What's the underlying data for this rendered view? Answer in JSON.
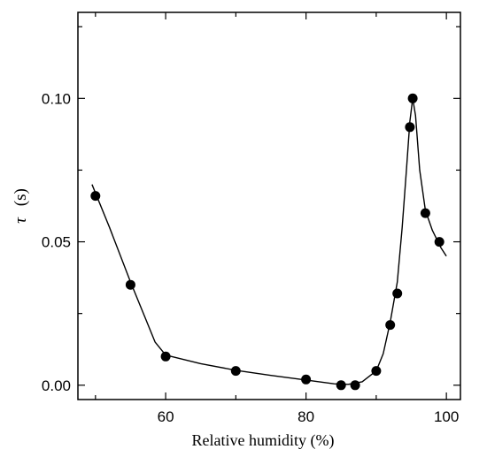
{
  "chart_data": {
    "type": "scatter",
    "title": "",
    "xlabel": "Relative humidity (%)",
    "ylabel_symbol": "τ",
    "ylabel_unit": "(s)",
    "xlim": [
      47.5,
      102
    ],
    "ylim": [
      -0.005,
      0.13
    ],
    "xticks": [
      60,
      80,
      100
    ],
    "yticks": [
      0.0,
      0.05,
      0.1
    ],
    "ytick_labels": [
      "0.00",
      "0.05",
      "0.10"
    ],
    "grid": false,
    "series": [
      {
        "points": [
          {
            "x": 50,
            "y": 0.066
          },
          {
            "x": 55,
            "y": 0.035
          },
          {
            "x": 60,
            "y": 0.01
          },
          {
            "x": 70,
            "y": 0.005
          },
          {
            "x": 80,
            "y": 0.002
          },
          {
            "x": 85,
            "y": 0.0
          },
          {
            "x": 87,
            "y": 0.0
          },
          {
            "x": 90,
            "y": 0.005
          },
          {
            "x": 92,
            "y": 0.021
          },
          {
            "x": 93,
            "y": 0.032
          },
          {
            "x": 94.8,
            "y": 0.09
          },
          {
            "x": 95.2,
            "y": 0.1
          },
          {
            "x": 97,
            "y": 0.06
          },
          {
            "x": 99,
            "y": 0.05
          }
        ],
        "color": "#000000"
      }
    ],
    "fit_curve": [
      [
        49.5,
        0.07
      ],
      [
        52,
        0.055
      ],
      [
        55,
        0.036
      ],
      [
        57,
        0.024
      ],
      [
        58.5,
        0.015
      ],
      [
        60,
        0.0105
      ],
      [
        65,
        0.0075
      ],
      [
        70,
        0.0052
      ],
      [
        75,
        0.0034
      ],
      [
        80,
        0.0018
      ],
      [
        84,
        0.0005
      ],
      [
        86,
        0.0003
      ],
      [
        88,
        0.0012
      ],
      [
        90,
        0.005
      ],
      [
        91,
        0.011
      ],
      [
        92,
        0.022
      ],
      [
        93,
        0.036
      ],
      [
        93.7,
        0.055
      ],
      [
        94.3,
        0.075
      ],
      [
        94.8,
        0.092
      ],
      [
        95.2,
        0.1
      ],
      [
        95.6,
        0.094
      ],
      [
        96.2,
        0.075
      ],
      [
        97,
        0.061
      ],
      [
        98,
        0.054
      ],
      [
        99.2,
        0.048
      ],
      [
        100,
        0.045
      ]
    ]
  }
}
